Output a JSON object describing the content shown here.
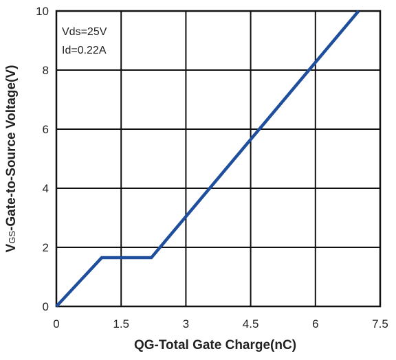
{
  "chart_data": {
    "type": "line",
    "xlabel": "QG-Total Gate Charge(nC)",
    "ylabel": "VGS-Gate-to-Source Voltage(V)",
    "xlim": [
      0,
      7.5
    ],
    "ylim": [
      0,
      10
    ],
    "x_ticks": [
      "0",
      "1.5",
      "3",
      "4.5",
      "6",
      "7.5"
    ],
    "y_ticks": [
      "0",
      "2",
      "4",
      "6",
      "8",
      "10"
    ],
    "grid": true,
    "annotations": [
      "Vds=25V",
      "Id=0.22A"
    ],
    "series": [
      {
        "color": "#1f4e9c",
        "x": [
          0,
          1.05,
          2.2,
          7.0
        ],
        "y": [
          0,
          1.65,
          1.65,
          10
        ]
      }
    ]
  }
}
